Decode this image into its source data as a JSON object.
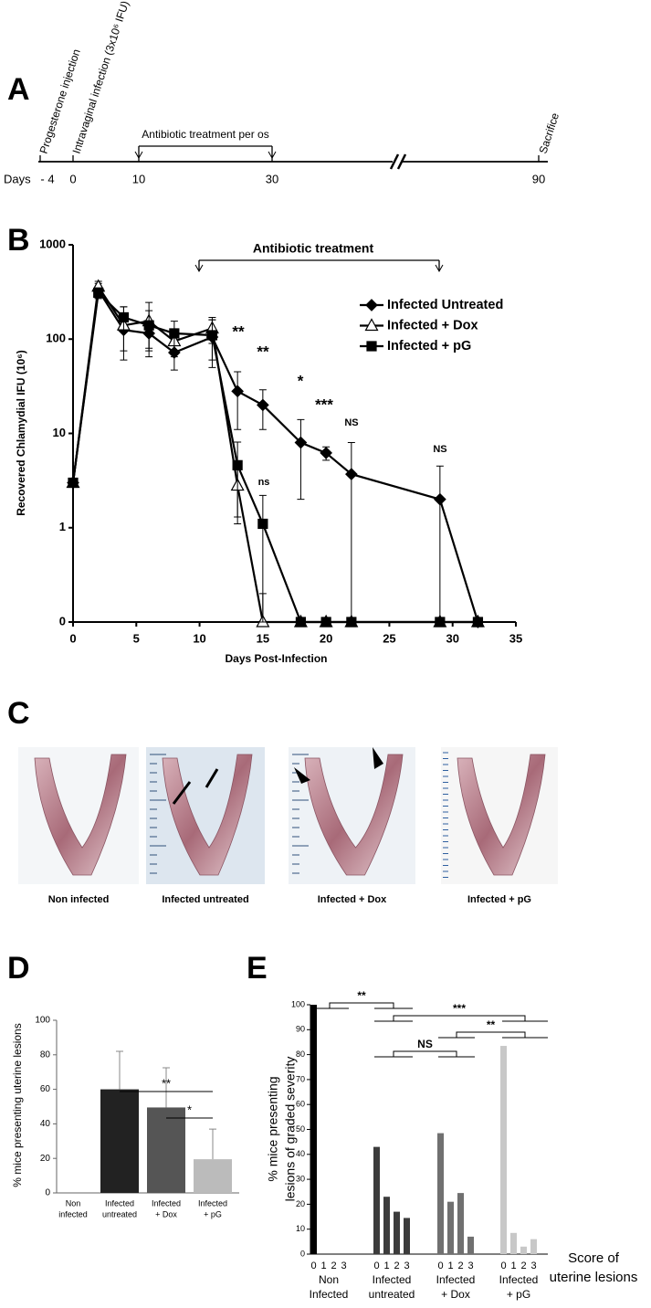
{
  "timeline": {
    "panel": "A",
    "days_label": "Days",
    "days": [
      "- 4",
      "0",
      "10",
      "30",
      "90"
    ],
    "events": [
      "Progesterone injection",
      "Intravaginal infection (3x10⁶ IFU)",
      "Sacrifice"
    ],
    "treatment": "Antibiotic treatment per os"
  },
  "photos": {
    "panel": "C",
    "captions": [
      "Non infected",
      "Infected untreated",
      "Infected + Dox",
      "Infected + pG"
    ]
  },
  "chart_data": [
    {
      "panel": "B",
      "type": "line",
      "xlabel": "Days Post-Infection",
      "ylabel": "Recovered Chlamydial IFU (10⁶)",
      "log_y": true,
      "treatment_label": "Antibiotic treatment",
      "x": [
        0,
        2,
        4,
        6,
        8,
        11,
        13,
        15,
        18,
        20,
        22,
        29,
        32
      ],
      "series": [
        {
          "name": "Infected Untreated",
          "color": "#000000",
          "marker": "diamond",
          "values": [
            3,
            330,
            125,
            115,
            72,
            105,
            28,
            20,
            8,
            6.2,
            3.7,
            2,
            0
          ],
          "errors": [
            0,
            60,
            50,
            40,
            25,
            55,
            17,
            9,
            6,
            1,
            4.3,
            2.5,
            0
          ]
        },
        {
          "name": "Infected + Dox",
          "color": "#000000",
          "marker": "triangle",
          "values": [
            3,
            360,
            140,
            155,
            95,
            130,
            2.8,
            0,
            0,
            0,
            0,
            0,
            0
          ],
          "errors": [
            0,
            50,
            80,
            90,
            30,
            40,
            1.5,
            0.2,
            0,
            0,
            0,
            0,
            0
          ]
        },
        {
          "name": "Infected + pG",
          "color": "#000000",
          "marker": "square",
          "values": [
            3,
            310,
            170,
            140,
            115,
            110,
            4.6,
            1.1,
            0,
            0,
            0,
            0,
            0
          ],
          "errors": [
            0,
            40,
            50,
            60,
            40,
            50,
            3.5,
            1.1,
            0,
            0,
            0,
            0,
            0
          ]
        }
      ],
      "xlim": [
        0,
        35
      ],
      "xticks": [
        0,
        5,
        10,
        15,
        20,
        25,
        30,
        35
      ],
      "ylim": [
        0,
        1000
      ],
      "yticks": [
        0,
        1,
        10,
        100,
        1000
      ],
      "annotations": [
        "**",
        "**",
        "*",
        "***",
        "NS",
        "NS",
        "ns"
      ]
    },
    {
      "panel": "D",
      "type": "bar",
      "ylabel": "% mice presenting uterine lesions",
      "categories": [
        [
          "Non",
          "infected"
        ],
        [
          "Infected",
          "untreated"
        ],
        [
          "Infected",
          "+ Dox"
        ],
        [
          "Infected",
          "+ pG"
        ]
      ],
      "values": [
        0,
        60,
        49.5,
        19.5
      ],
      "errors": [
        null,
        22,
        23,
        17.5
      ],
      "colors": [
        "#222222",
        "#222222",
        "#555555",
        "#bbbbbb"
      ],
      "ylim": [
        0,
        100
      ],
      "yticks": [
        0,
        20,
        40,
        60,
        80,
        100
      ],
      "significance": [
        "**",
        "*"
      ]
    },
    {
      "panel": "E",
      "type": "grouped_bar",
      "ylabel": [
        "% mice presenting",
        "lesions of graded severity"
      ],
      "score_label": [
        "Score of",
        "uterine lesions"
      ],
      "scores": [
        "0",
        "1",
        "2",
        "3"
      ],
      "groups": [
        {
          "label": [
            "Non",
            "Infected"
          ],
          "color": "#000000",
          "values": [
            100,
            0,
            0,
            0
          ]
        },
        {
          "label": [
            "Infected",
            "untreated"
          ],
          "color": "#3c3c3c",
          "values": [
            43,
            23,
            17,
            14.5
          ]
        },
        {
          "label": [
            "Infected",
            "+ Dox"
          ],
          "color": "#707070",
          "values": [
            48.5,
            21,
            24.5,
            7
          ]
        },
        {
          "label": [
            "Infected",
            "+ pG"
          ],
          "color": "#c8c8c8",
          "values": [
            83.5,
            8.5,
            3,
            6
          ]
        }
      ],
      "ylim": [
        0,
        100
      ],
      "yticks": [
        0,
        10,
        20,
        30,
        40,
        50,
        60,
        70,
        80,
        90,
        100
      ],
      "significance": [
        "**",
        "***",
        "**",
        "NS"
      ]
    }
  ]
}
